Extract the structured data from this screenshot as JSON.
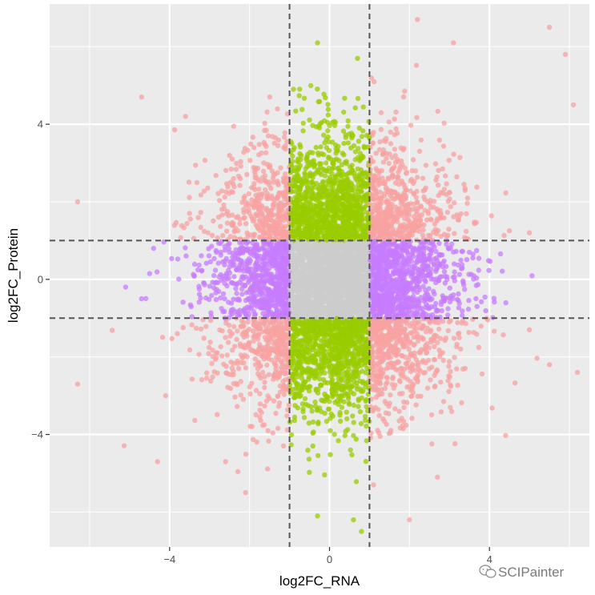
{
  "chart_data": {
    "type": "scatter",
    "title": "",
    "xlabel": "log2FC_RNA",
    "ylabel": "log2FC_Protein",
    "xlim": [
      -7,
      6.5
    ],
    "ylim": [
      -6.9,
      7.1
    ],
    "x_ticks": [
      -4,
      0,
      4
    ],
    "y_ticks": [
      -4,
      0,
      4
    ],
    "x_tick_labels": [
      "−4",
      "0",
      "4"
    ],
    "y_tick_labels": [
      "−4",
      "0",
      "4"
    ],
    "thresholds": {
      "x": [
        -1,
        1
      ],
      "y": [
        -1,
        1
      ]
    },
    "grid": true,
    "legend": "none",
    "point_count_approx": 8000,
    "groups": [
      {
        "id": "both-changed",
        "rule": "|RNA| > 1 and |Protein| > 1",
        "color": "#F8A1A1"
      },
      {
        "id": "protein-only",
        "rule": "|RNA| <= 1 and |Protein| > 1",
        "color": "#99CC00"
      },
      {
        "id": "rna-only",
        "rule": "|RNA| > 1 and |Protein| <= 1",
        "color": "#C77CFF"
      },
      {
        "id": "unchanged",
        "rule": "|RNA| <= 1 and |Protein| <= 1",
        "color": "#CCCCCC"
      }
    ],
    "sample_points": [
      [
        -6.3,
        2.0
      ],
      [
        -6.3,
        -2.7
      ],
      [
        -4.7,
        4.7
      ],
      [
        -4.7,
        -0.5
      ],
      [
        -5.1,
        -0.2
      ],
      [
        -3.6,
        4.2
      ],
      [
        -4.1,
        -3.0
      ],
      [
        -4.3,
        -4.7
      ],
      [
        -4.4,
        0.8
      ],
      [
        -4.5,
        0.15
      ],
      [
        -0.9,
        4.9
      ],
      [
        -0.3,
        6.1
      ],
      [
        0.7,
        5.7
      ],
      [
        0.6,
        -6.2
      ],
      [
        0.8,
        -6.5
      ],
      [
        -0.3,
        -6.1
      ],
      [
        2.2,
        6.7
      ],
      [
        3.1,
        6.1
      ],
      [
        5.5,
        6.5
      ],
      [
        5.9,
        5.8
      ],
      [
        6.1,
        4.5
      ],
      [
        6.2,
        -2.4
      ],
      [
        5.5,
        -2.2
      ],
      [
        2.0,
        -6.2
      ],
      [
        2.7,
        -5.1
      ],
      [
        1.1,
        -5.3
      ],
      [
        -2.1,
        -5.5
      ],
      [
        -2.6,
        -4.7
      ],
      [
        5.0,
        1.2
      ],
      [
        5.0,
        -1.3
      ]
    ]
  },
  "style": {
    "panel_bg": "#EBEBEB",
    "grid_color": "#FFFFFF",
    "threshold_line_color": "#555555",
    "point_opacity": 0.75
  },
  "watermark": {
    "icon": "wechat-icon",
    "text": "SCIPainter"
  }
}
